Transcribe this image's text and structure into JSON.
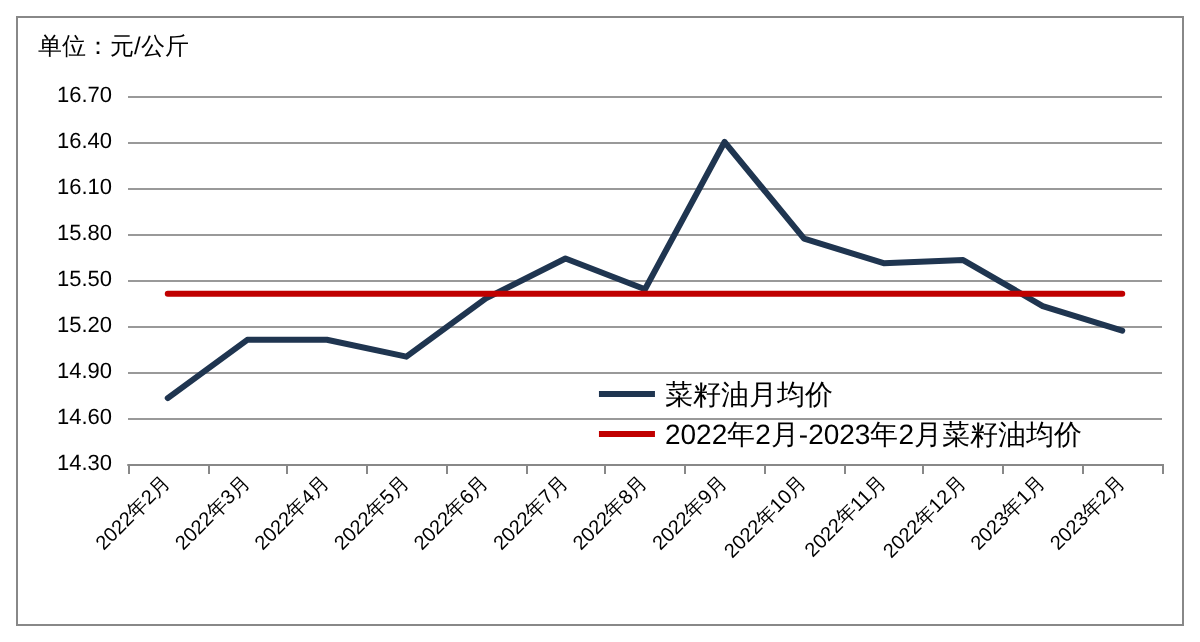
{
  "chart_data": {
    "type": "line",
    "ylabel": "单位：元/公斤",
    "categories": [
      "2022年2月",
      "2022年3月",
      "2022年4月",
      "2022年5月",
      "2022年6月",
      "2022年7月",
      "2022年8月",
      "2022年9月",
      "2022年10月",
      "2022年11月",
      "2022年12月",
      "2023年1月",
      "2023年2月"
    ],
    "series": [
      {
        "name": "菜籽油月均价",
        "color": "#1f3550",
        "values": [
          14.73,
          15.11,
          15.11,
          15.0,
          15.38,
          15.64,
          15.44,
          16.4,
          15.77,
          15.61,
          15.63,
          15.33,
          15.17
        ]
      },
      {
        "name": "2022年2月-2023年2月菜籽油均价",
        "color": "#c00000",
        "values": [
          15.41,
          15.41,
          15.41,
          15.41,
          15.41,
          15.41,
          15.41,
          15.41,
          15.41,
          15.41,
          15.41,
          15.41,
          15.41
        ]
      }
    ],
    "ylim": [
      14.3,
      16.7
    ],
    "yticks": [
      {
        "value": 14.3,
        "label": "14.30"
      },
      {
        "value": 14.6,
        "label": "14.60"
      },
      {
        "value": 14.9,
        "label": "14.90"
      },
      {
        "value": 15.2,
        "label": "15.20"
      },
      {
        "value": 15.5,
        "label": "15.50"
      },
      {
        "value": 15.8,
        "label": "15.80"
      },
      {
        "value": 16.1,
        "label": "16.10"
      },
      {
        "value": 16.4,
        "label": "16.40"
      },
      {
        "value": 16.7,
        "label": "16.70"
      }
    ],
    "grid": "y",
    "legend": "bottom right",
    "marker": "none",
    "line_style": "solid"
  }
}
